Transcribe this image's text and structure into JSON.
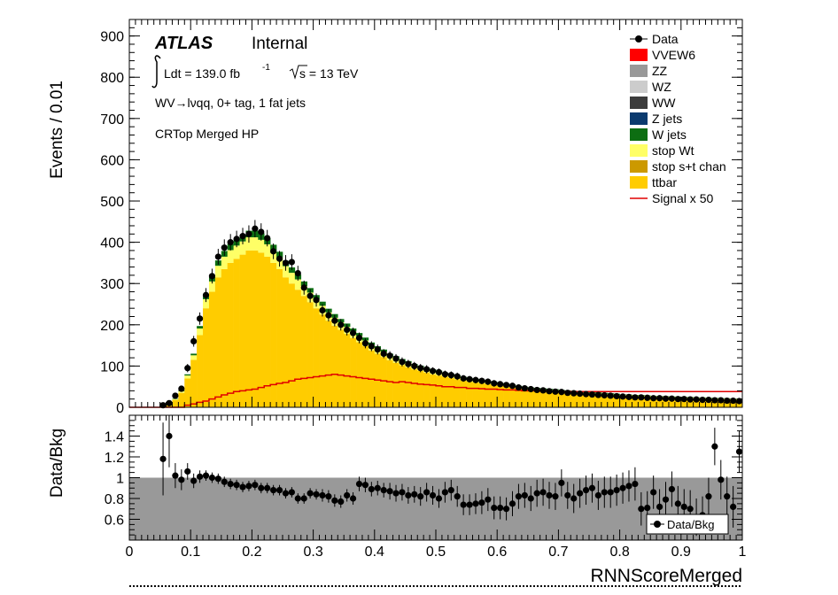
{
  "chart_data": {
    "type": "bar",
    "top_panel": {
      "ylabel": "Events / 0.01",
      "ylim": [
        0,
        940
      ],
      "yticks": [
        0,
        100,
        200,
        300,
        400,
        500,
        600,
        700,
        800,
        900
      ],
      "atlas_label": "ATLAS",
      "atlas_status": "Internal",
      "lumi_text": "Ldt = 139.0 fb",
      "lumi_exponent": "-1",
      "energy_text": "s = 13 TeV",
      "channel_text": "WV→lνqq, 0+ tag, 1 fat jets",
      "region_text": "CRTop Merged HP",
      "legend": [
        {
          "label": "Data",
          "kind": "marker",
          "color": "#000000"
        },
        {
          "label": "VVEW6",
          "kind": "fill",
          "color": "#ff0000"
        },
        {
          "label": "ZZ",
          "kind": "fill",
          "color": "#999999"
        },
        {
          "label": "WZ",
          "kind": "fill",
          "color": "#cccccc"
        },
        {
          "label": "WW",
          "kind": "fill",
          "color": "#3c3c3c"
        },
        {
          "label": "Z jets",
          "kind": "fill",
          "color": "#0b3a6e"
        },
        {
          "label": "W jets",
          "kind": "fill",
          "color": "#0d6e12"
        },
        {
          "label": "stop Wt",
          "kind": "fill",
          "color": "#ffff66"
        },
        {
          "label": "stop s+t chan",
          "kind": "fill",
          "color": "#cc9900"
        },
        {
          "label": "ttbar",
          "kind": "fill",
          "color": "#ffcc00"
        },
        {
          "label": "Signal x 50",
          "kind": "line",
          "color": "#e00000"
        }
      ]
    },
    "bottom_panel": {
      "ylabel": "Data/Bkg",
      "ylim": [
        0.4,
        1.6
      ],
      "yticks": [
        "0.6",
        "0.8",
        "1",
        "1.2",
        "1.4"
      ],
      "legend_label": "Data/Bkg",
      "band_color": "#999999"
    },
    "x_axis": {
      "xlabel": "RNNScoreMerged",
      "xlim": [
        0,
        1
      ],
      "xticks": [
        "0",
        "0.1",
        "0.2",
        "0.3",
        "0.4",
        "0.5",
        "0.6",
        "0.7",
        "0.8",
        "0.9",
        "1"
      ],
      "bin_width": 0.01
    },
    "bin_low_edges_start": 0.0,
    "ttbar": [
      0,
      0,
      0,
      0,
      0,
      3,
      8,
      18,
      35,
      70,
      115,
      175,
      240,
      280,
      315,
      335,
      350,
      360,
      370,
      380,
      380,
      375,
      365,
      350,
      335,
      315,
      300,
      285,
      270,
      255,
      240,
      225,
      210,
      198,
      188,
      178,
      168,
      158,
      148,
      138,
      130,
      122,
      114,
      108,
      102,
      97,
      92,
      88,
      84,
      80,
      77,
      74,
      71,
      68,
      65,
      62,
      60,
      58,
      56,
      54,
      52,
      50,
      48,
      46,
      44,
      42,
      41,
      40,
      39,
      38,
      37,
      36,
      35,
      34,
      33,
      32,
      31,
      30,
      29,
      28,
      27,
      27,
      26,
      26,
      25,
      25,
      24,
      24,
      23,
      23,
      22,
      22,
      21,
      21,
      20,
      20,
      19,
      19,
      18,
      18
    ],
    "stop_wt": [
      0,
      0,
      0,
      0,
      0,
      0,
      1,
      2,
      4,
      7,
      11,
      16,
      22,
      25,
      28,
      30,
      31,
      32,
      32,
      32,
      32,
      31,
      30,
      29,
      28,
      27,
      26,
      25,
      24,
      23,
      22,
      21,
      20,
      19,
      18,
      17,
      16,
      15,
      14,
      13,
      12,
      12,
      11,
      11,
      10,
      10,
      9,
      9,
      8,
      8,
      8,
      7,
      7,
      7,
      6,
      6,
      6,
      6,
      5,
      5,
      5,
      5,
      5,
      4,
      4,
      4,
      4,
      4,
      4,
      4,
      3,
      3,
      3,
      3,
      3,
      3,
      3,
      3,
      3,
      3,
      3,
      3,
      3,
      3,
      3,
      2,
      2,
      2,
      2,
      2,
      2,
      2,
      2,
      2,
      2,
      2,
      2,
      2,
      2,
      2
    ],
    "w_jets": [
      0,
      0,
      0,
      0,
      0,
      0,
      0,
      1,
      2,
      3,
      4,
      6,
      9,
      11,
      13,
      14,
      15,
      16,
      16,
      16,
      16,
      16,
      15,
      15,
      14,
      13,
      13,
      12,
      11,
      11,
      10,
      10,
      9,
      9,
      8,
      8,
      7,
      7,
      7,
      6,
      6,
      6,
      5,
      5,
      5,
      5,
      4,
      4,
      4,
      4,
      4,
      3,
      3,
      3,
      3,
      3,
      3,
      3,
      3,
      3,
      2,
      2,
      2,
      2,
      2,
      2,
      2,
      2,
      2,
      2,
      2,
      2,
      2,
      2,
      2,
      2,
      2,
      2,
      2,
      2,
      1,
      1,
      1,
      1,
      1,
      1,
      1,
      1,
      1,
      1,
      1,
      1,
      1,
      1,
      1,
      1,
      1,
      1,
      1,
      1
    ],
    "data": [
      null,
      null,
      null,
      null,
      null,
      5,
      10,
      28,
      45,
      95,
      160,
      215,
      272,
      318,
      365,
      387,
      400,
      408,
      415,
      420,
      433,
      425,
      410,
      378,
      360,
      350,
      352,
      325,
      290,
      270,
      260,
      235,
      223,
      210,
      200,
      188,
      180,
      168,
      155,
      148,
      140,
      130,
      125,
      118,
      110,
      105,
      100,
      95,
      92,
      88,
      85,
      80,
      78,
      75,
      70,
      68,
      66,
      64,
      62,
      58,
      56,
      54,
      52,
      48,
      46,
      44,
      42,
      41,
      39,
      38,
      37,
      35,
      34,
      33,
      32,
      31,
      30,
      29,
      28,
      27,
      26,
      25,
      24,
      24,
      23,
      22,
      22,
      21,
      21,
      20,
      20,
      19,
      19,
      18,
      18,
      17,
      17,
      16,
      16,
      15
    ],
    "data_err": [
      0,
      0,
      0,
      0,
      0,
      3,
      4,
      6,
      7,
      10,
      13,
      15,
      17,
      18,
      19,
      20,
      20,
      20,
      20,
      21,
      21,
      21,
      20,
      19,
      19,
      19,
      19,
      18,
      17,
      16,
      16,
      15,
      15,
      14,
      14,
      14,
      13,
      13,
      12,
      12,
      12,
      11,
      11,
      11,
      11,
      10,
      10,
      10,
      10,
      9,
      9,
      9,
      9,
      9,
      8,
      8,
      8,
      8,
      8,
      8,
      7,
      7,
      7,
      7,
      7,
      7,
      6,
      6,
      6,
      6,
      6,
      6,
      6,
      6,
      6,
      6,
      5,
      5,
      5,
      5,
      5,
      5,
      5,
      5,
      5,
      5,
      5,
      5,
      5,
      4,
      4,
      4,
      4,
      4,
      4,
      4,
      4,
      4,
      4,
      4
    ],
    "signal_x50": [
      0,
      0,
      0,
      0,
      0,
      0,
      0,
      0,
      0,
      5,
      8,
      12,
      15,
      20,
      25,
      30,
      34,
      38,
      40,
      42,
      44,
      48,
      52,
      55,
      58,
      60,
      64,
      68,
      70,
      72,
      74,
      76,
      78,
      80,
      78,
      76,
      74,
      72,
      70,
      68,
      66,
      64,
      62,
      60,
      62,
      60,
      58,
      56,
      55,
      54,
      52,
      50,
      50,
      48,
      48,
      46,
      46,
      45,
      44,
      44,
      43,
      42,
      42,
      41,
      40,
      40,
      40,
      39,
      39,
      38,
      38,
      38,
      38,
      38,
      38,
      38,
      38,
      38,
      38,
      38,
      38,
      38,
      38,
      38,
      38,
      38,
      38,
      38,
      38,
      38,
      38,
      38,
      38,
      38,
      38,
      38,
      38,
      38,
      38,
      38
    ],
    "ratio": [
      null,
      null,
      null,
      null,
      null,
      1.18,
      1.4,
      1.02,
      0.98,
      1.06,
      0.97,
      1.01,
      1.02,
      1.0,
      0.99,
      0.96,
      0.94,
      0.93,
      0.91,
      0.92,
      0.93,
      0.9,
      0.9,
      0.88,
      0.88,
      0.85,
      0.86,
      0.8,
      0.8,
      0.85,
      0.84,
      0.83,
      0.82,
      0.78,
      0.77,
      0.83,
      0.8,
      0.94,
      0.93,
      0.89,
      0.9,
      0.88,
      0.87,
      0.85,
      0.86,
      0.83,
      0.84,
      0.82,
      0.86,
      0.83,
      0.8,
      0.86,
      0.88,
      0.82,
      0.74,
      0.74,
      0.75,
      0.76,
      0.79,
      0.71,
      0.71,
      0.7,
      0.75,
      0.82,
      0.83,
      0.8,
      0.85,
      0.86,
      0.83,
      0.82,
      0.95,
      0.83,
      0.8,
      0.85,
      0.88,
      0.9,
      0.83,
      0.86,
      0.86,
      0.88,
      0.9,
      0.92,
      0.94,
      0.7,
      0.71,
      0.86,
      0.72,
      0.79,
      0.89,
      0.75,
      0.72,
      0.7,
      0.62,
      0.64,
      0.82,
      1.3,
      0.98,
      0.82,
      0.72,
      1.25
    ],
    "ratio_err": [
      0,
      0,
      0,
      0,
      0,
      0.35,
      0.3,
      0.12,
      0.1,
      0.08,
      0.07,
      0.06,
      0.05,
      0.05,
      0.05,
      0.05,
      0.05,
      0.05,
      0.05,
      0.05,
      0.05,
      0.05,
      0.05,
      0.05,
      0.05,
      0.05,
      0.05,
      0.05,
      0.05,
      0.05,
      0.05,
      0.06,
      0.06,
      0.06,
      0.06,
      0.06,
      0.06,
      0.07,
      0.07,
      0.07,
      0.07,
      0.07,
      0.08,
      0.08,
      0.08,
      0.08,
      0.08,
      0.09,
      0.09,
      0.09,
      0.09,
      0.1,
      0.1,
      0.1,
      0.1,
      0.1,
      0.1,
      0.11,
      0.11,
      0.11,
      0.11,
      0.11,
      0.12,
      0.12,
      0.12,
      0.12,
      0.13,
      0.13,
      0.13,
      0.13,
      0.13,
      0.13,
      0.14,
      0.14,
      0.14,
      0.14,
      0.14,
      0.15,
      0.15,
      0.15,
      0.15,
      0.15,
      0.16,
      0.16,
      0.16,
      0.16,
      0.17,
      0.17,
      0.17,
      0.17,
      0.17,
      0.18,
      0.18,
      0.18,
      0.18,
      0.18,
      0.19,
      0.19,
      0.2,
      0.2
    ]
  }
}
